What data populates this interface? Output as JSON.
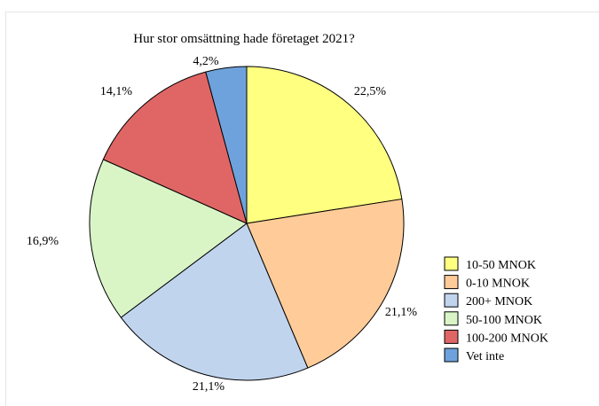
{
  "chart_data": {
    "type": "pie",
    "title": "Hur stor omsättning hade företaget 2021?",
    "slices": [
      {
        "label": "10-50 MNOK",
        "value": 22.5,
        "value_label": "22,5%",
        "color": "#ffff80"
      },
      {
        "label": "0-10 MNOK",
        "value": 21.1,
        "value_label": "21,1%",
        "color": "#ffcc99"
      },
      {
        "label": "200+ MNOK",
        "value": 21.1,
        "value_label": "21,1%",
        "color": "#c0d4ee"
      },
      {
        "label": "50-100 MNOK",
        "value": 16.9,
        "value_label": "16,9%",
        "color": "#d9f5c6"
      },
      {
        "label": "100-200 MNOK",
        "value": 14.1,
        "value_label": "14,1%",
        "color": "#e06666"
      },
      {
        "label": "Vet inte",
        "value": 4.2,
        "value_label": "4,2%",
        "color": "#6ea2dc"
      }
    ],
    "legend_position": "bottom-right"
  }
}
